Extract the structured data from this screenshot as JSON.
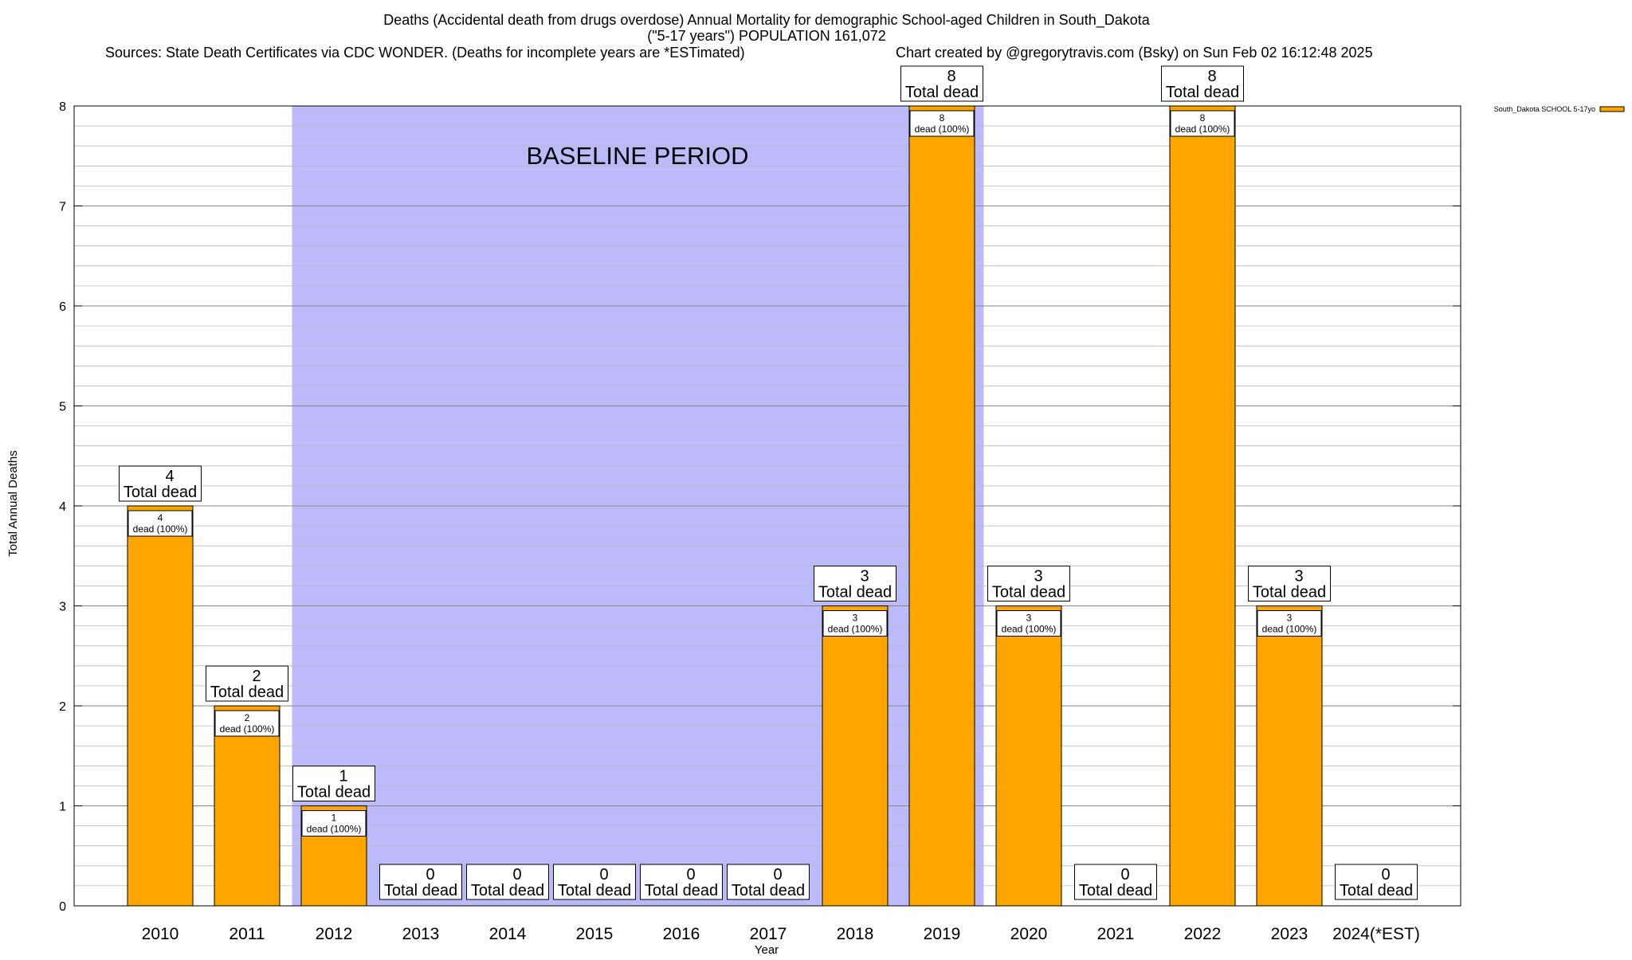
{
  "chart_data": {
    "type": "bar",
    "title": {
      "line1": "Deaths (Accidental death from drugs overdose) Annual Mortality for demographic School-aged Children in South_Dakota",
      "line2": "(\"5-17 years\") POPULATION 161,072",
      "line3_left": "Sources: State Death Certificates via CDC WONDER. (Deaths for incomplete years are *ESTimated)",
      "line3_right": "Chart created by @gregorytravis.com (Bsky) on Sun Feb 02 16:12:48 2025"
    },
    "xlabel": "Year",
    "ylabel": "Total Annual Deaths",
    "ylim": [
      0,
      8
    ],
    "yticks": [
      "0",
      "1",
      "2",
      "3",
      "4",
      "5",
      "6",
      "7",
      "8"
    ],
    "grid": true,
    "categories": [
      "2010",
      "2011",
      "2012",
      "2013",
      "2014",
      "2015",
      "2016",
      "2017",
      "2018",
      "2019",
      "2020",
      "2021",
      "2022",
      "2023",
      "2024(*EST)"
    ],
    "series": [
      {
        "name": "South_Dakota SCHOOL 5-17yo",
        "color": "#FFA500",
        "values": [
          4,
          2,
          1,
          0,
          0,
          0,
          0,
          0,
          3,
          8,
          3,
          0,
          8,
          3,
          0
        ]
      }
    ],
    "total_label_suffix": "Total dead",
    "inner_label_suffix": "dead (100%)",
    "baseline": {
      "label": "BASELINE PERIOD",
      "from_year": "2012",
      "to_year": "2019",
      "color": "#BBBBFB"
    },
    "legend": {
      "position": "top-right"
    }
  }
}
